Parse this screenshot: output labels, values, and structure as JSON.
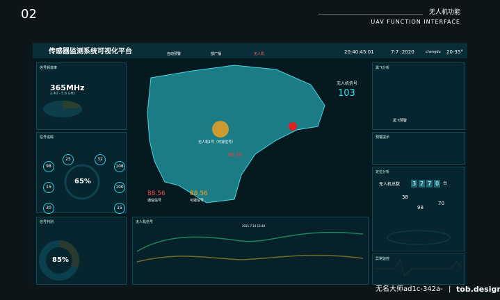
{
  "slide": {
    "number": "02",
    "title_cn": "无人机功能",
    "title_en": "UAV FUNCTION INTERFACE"
  },
  "header": {
    "title": "传感器监测系统可视化平台",
    "tabs": [
      "自动预警",
      "部广播",
      "无人机"
    ],
    "time": "20:40:45:01",
    "date": "7:7 :2020",
    "city": "chengdu",
    "temp": "20-35°"
  },
  "left": {
    "spectrum": {
      "title": "信号频谱率",
      "freq": "365MHz",
      "range": "2.40 - 5.8 GHz"
    },
    "tracking": {
      "title": "信号追踪",
      "percent": "65%",
      "nodes": [
        "98",
        "25",
        "32",
        "108",
        "15",
        "100",
        "30",
        "15"
      ]
    },
    "judge": {
      "title": "信号判别",
      "percent": "85%"
    }
  },
  "center": {
    "uav_signal_label": "无人机信号",
    "uav_signal_count": "103",
    "target": "无人机1号（可疑信号）",
    "target_value": "88.56",
    "comm_value": "88.56",
    "comm_label": "通信信号",
    "suspect_value": "88.56",
    "suspect_label": "可疑信号"
  },
  "chart": {
    "title": "无人机信号",
    "tooltip": "2021.7.14 13:48"
  },
  "right": {
    "black_fly": {
      "title": "黑飞分析",
      "badge": "黑飞预警"
    },
    "alert": {
      "title": "预警提示"
    },
    "locate": {
      "title": "定位分析",
      "total_label": "无人机总数",
      "digits": [
        "3",
        "2",
        "7",
        "0"
      ],
      "unit": "台",
      "counts": [
        "38",
        "98",
        "70"
      ]
    },
    "abnormal": {
      "title": "异常监控"
    }
  },
  "footer": {
    "author": "无名大师ad1c-342a-",
    "sep": "|",
    "brand": "tob.design"
  }
}
